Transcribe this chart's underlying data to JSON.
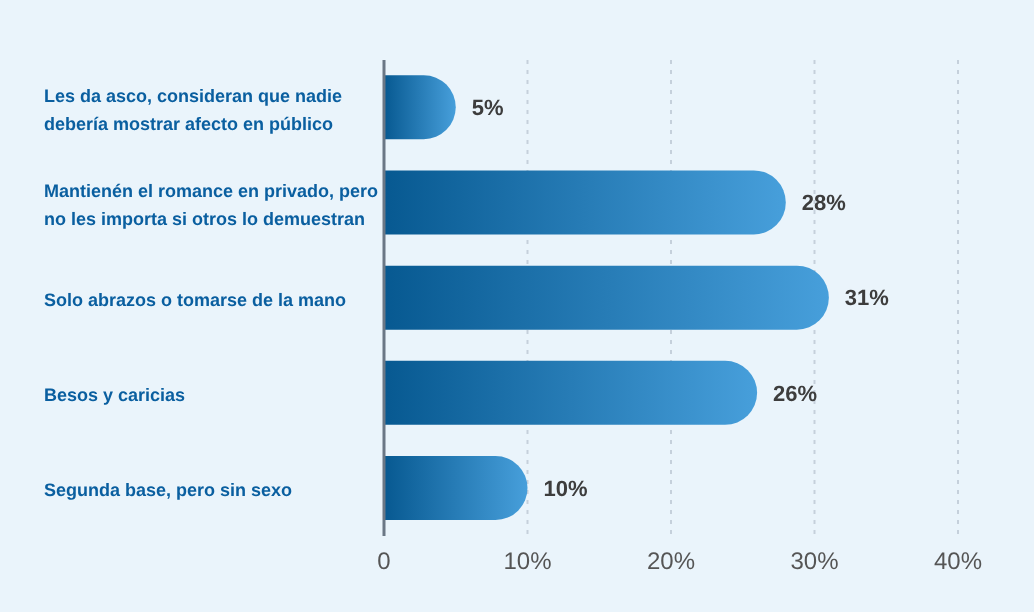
{
  "chart_data": {
    "type": "bar",
    "orientation": "horizontal",
    "categories": [
      "Les da asco, consideran que nadie debería mostrar afecto en público",
      "Mantienén el romance en privado, pero no les importa si otros lo demuestran",
      "Solo abrazos o tomarse de la mano",
      "Besos y caricias",
      "Segunda base, pero sin sexo"
    ],
    "values": [
      5,
      28,
      31,
      26,
      10
    ],
    "value_labels": [
      "5%",
      "28%",
      "31%",
      "26%",
      "10%"
    ],
    "color": "#0a7fcf",
    "xlim": [
      0,
      40
    ],
    "xticks": [
      0,
      {
        "value": 10,
        "label": "10%"
      },
      {
        "value": 20,
        "label": "20%"
      },
      {
        "value": 30,
        "label": "30%"
      },
      {
        "value": 40,
        "label": "40%"
      }
    ],
    "grid": "x",
    "legend": false
  }
}
